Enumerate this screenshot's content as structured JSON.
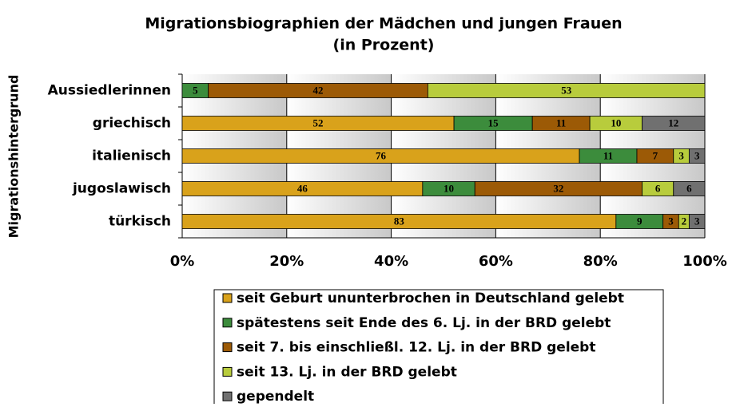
{
  "chart_data": {
    "type": "stacked-bar-horizontal",
    "title": [
      "Migrationsbiographien der Mädchen und jungen Frauen",
      "(in Prozent)"
    ],
    "y_axis_label": "Migrationshintergrund",
    "categories": [
      "Aussiedlerinnen",
      "griechisch",
      "italienisch",
      "jugoslawisch",
      "türkisch"
    ],
    "series": [
      {
        "name": "seit Geburt ununterbrochen in Deutschland gelebt",
        "color": "#D9A21B",
        "values": [
          null,
          52,
          76,
          46,
          83
        ]
      },
      {
        "name": "spätestens seit Ende des 6. Lj. in der BRD gelebt",
        "color": "#3C8C3C",
        "values": [
          5,
          15,
          11,
          10,
          9
        ]
      },
      {
        "name": "seit 7. bis einschließl. 12. Lj. in der BRD gelebt",
        "color": "#9C5A06",
        "values": [
          42,
          11,
          7,
          32,
          3
        ]
      },
      {
        "name": "seit 13. Lj. in der BRD gelebt",
        "color": "#B8CC3C",
        "values": [
          53,
          10,
          3,
          6,
          2
        ]
      },
      {
        "name": "gependelt",
        "color": "#707070",
        "values": [
          null,
          12,
          3,
          6,
          3
        ]
      }
    ],
    "xlim": [
      0,
      100
    ],
    "xticks": [
      {
        "value": 0,
        "label": "0%"
      },
      {
        "value": 20,
        "label": "20%"
      },
      {
        "value": 40,
        "label": "40%"
      },
      {
        "value": 60,
        "label": "60%"
      },
      {
        "value": 80,
        "label": "80%"
      },
      {
        "value": 100,
        "label": "100%"
      }
    ],
    "grid": true,
    "legend": "bottom"
  }
}
